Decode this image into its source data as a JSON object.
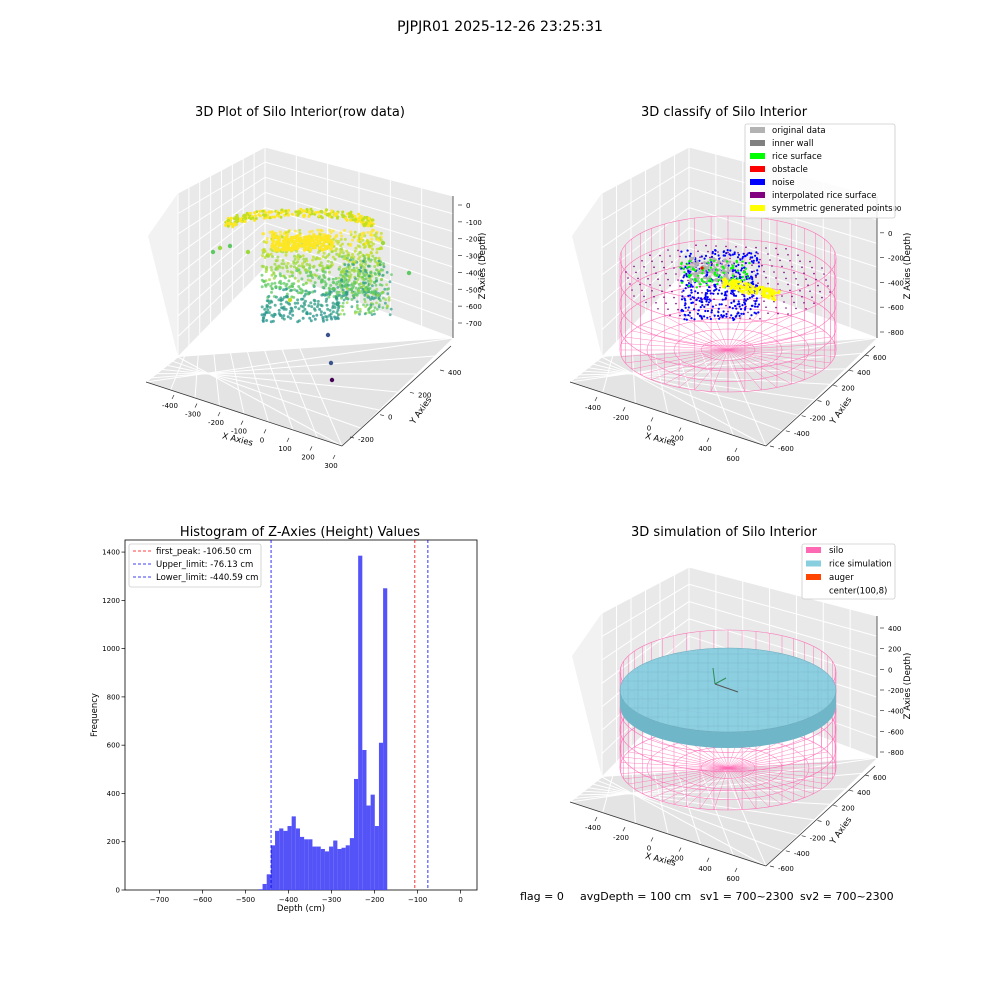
{
  "suptitle": "PJPJR01 2025-12-26 23:25:31",
  "footer": {
    "flag": "flag = 0",
    "avg_depth": "avgDepth = 100 cm",
    "sv1": "sv1 = 700~2300",
    "sv2": "sv2 = 700~2300"
  },
  "colors": {
    "hist_bar": "#4a4af7",
    "first_peak": "#ff0000",
    "limit": "#0000ee",
    "silo": "#ff69b4",
    "rice": "#87cedf",
    "auger": "#ff4500",
    "original": "#b3b3b3",
    "inner_wall": "#808080",
    "rice_surface": "#00ff00",
    "obstacle": "#ff0000",
    "noise": "#0000ff",
    "interpolated": "#800080",
    "symmetric": "#ffff00"
  },
  "chart_data": [
    {
      "type": "scatter",
      "subtype": "3d",
      "title": "3D Plot of Silo Interior(row data)",
      "xlabel": "X Axies",
      "ylabel": "Y Axies",
      "zlabel": "Z Axies (Depth)",
      "xticks": [
        "-400",
        "-300",
        "-200",
        "-100",
        "0",
        "100",
        "200",
        "300"
      ],
      "yticks": [
        "-200",
        "0",
        "200",
        "400"
      ],
      "zticks": [
        "0",
        "-100",
        "-200",
        "-300",
        "-400",
        "-500",
        "-600",
        "-700"
      ],
      "colormap": "viridis"
    },
    {
      "type": "scatter",
      "subtype": "3d",
      "title": "3D classify of Silo Interior",
      "xlabel": "X Axies",
      "ylabel": "Y Axies",
      "zlabel": "Z Axies (Depth)",
      "xticks": [
        "-400",
        "-200",
        "0",
        "200",
        "400",
        "600"
      ],
      "yticks": [
        "-600",
        "-400",
        "-200",
        "0",
        "200",
        "400",
        "600"
      ],
      "zticks": [
        "200",
        "0",
        "-200",
        "-400",
        "-600",
        "-800"
      ],
      "legend": [
        {
          "label": "original data",
          "color": "#b3b3b3"
        },
        {
          "label": "inner wall",
          "color": "#808080"
        },
        {
          "label": "rice surface",
          "color": "#00ff00"
        },
        {
          "label": "obstacle",
          "color": "#ff0000"
        },
        {
          "label": "noise",
          "color": "#0000ff"
        },
        {
          "label": "interpolated rice surface",
          "color": "#800080"
        },
        {
          "label": "symmetric generated points",
          "color": "#ffff00"
        }
      ],
      "legend_position": "top-right"
    },
    {
      "type": "bar",
      "subtype": "histogram",
      "title": "Histogram of Z-Axies (Height) Values",
      "xlabel": "Depth (cm)",
      "ylabel": "Frequency",
      "xlim": [
        -780,
        38
      ],
      "ylim": [
        0,
        1450
      ],
      "xticks": [
        -700,
        -600,
        -500,
        -400,
        -300,
        -200,
        -100,
        0
      ],
      "yticks": [
        0,
        200,
        400,
        600,
        800,
        1000,
        1200,
        1400
      ],
      "bin_width": 9.66,
      "bin_start": -470.0,
      "counts": [
        3,
        25,
        65,
        185,
        245,
        255,
        245,
        265,
        305,
        255,
        220,
        210,
        210,
        180,
        180,
        170,
        160,
        180,
        205,
        170,
        175,
        185,
        215,
        460,
        1385,
        580,
        350,
        395,
        265,
        610,
        1250
      ],
      "lines": [
        {
          "label": "first_peak: -106.50 cm",
          "x": -106.5,
          "color": "#ff0000"
        },
        {
          "label": "Upper_limit: -76.13 cm",
          "x": -76.13,
          "color": "#0000ee"
        },
        {
          "label": "Lower_limit: -440.59 cm",
          "x": -440.59,
          "color": "#0000ee"
        }
      ],
      "legend_position": "top-left"
    },
    {
      "type": "scatter",
      "subtype": "3d",
      "title": "3D simulation of Silo Interior",
      "xlabel": "X Axies",
      "ylabel": "Y Axies",
      "zlabel": "Z Axies (Depth)",
      "xticks": [
        "-400",
        "-200",
        "0",
        "200",
        "400",
        "600"
      ],
      "yticks": [
        "-600",
        "-400",
        "-200",
        "0",
        "200",
        "400",
        "600"
      ],
      "zticks": [
        "400",
        "200",
        "0",
        "-200",
        "-400",
        "-600",
        "-800"
      ],
      "legend": [
        {
          "label": "silo",
          "color": "#ff69b4"
        },
        {
          "label": "rice simulation",
          "color": "#87cedf"
        },
        {
          "label": "auger",
          "color": "#ff4500"
        },
        {
          "label": "center(100,8)",
          "color": null
        }
      ],
      "legend_position": "top-right"
    }
  ]
}
